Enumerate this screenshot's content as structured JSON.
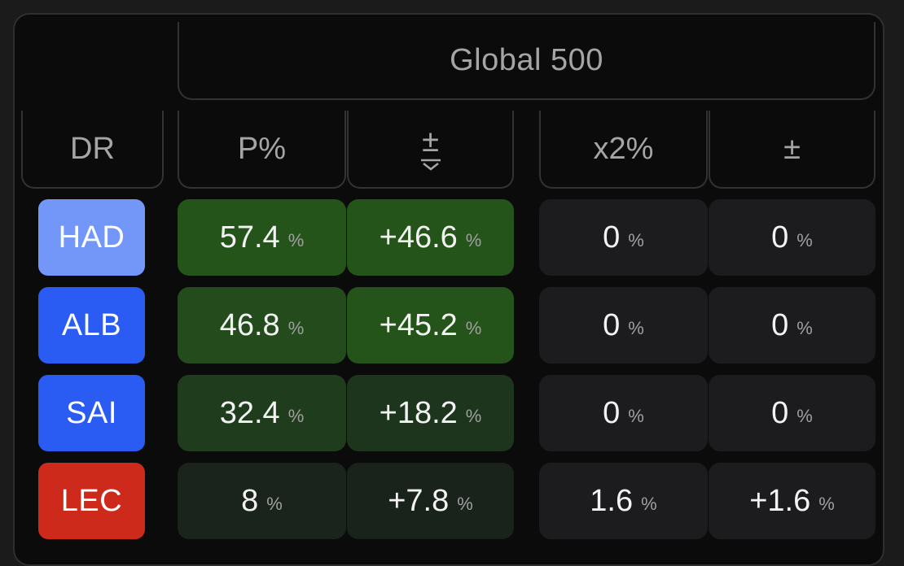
{
  "header": {
    "title": "Global 500"
  },
  "columns": {
    "dr": "DR",
    "p_pct": "P%",
    "p_delta": "±",
    "x2_pct": "x2%",
    "x2_delta": "±"
  },
  "unit": "%",
  "colors": {
    "had": "#7297f8",
    "alb": "#2a5cf4",
    "sai": "#2a5cf4",
    "lec": "#cd2a1c"
  },
  "rows": [
    {
      "driver": "HAD",
      "p": "57.4",
      "pd": "+46.6",
      "x2": "0",
      "x2d": "0"
    },
    {
      "driver": "ALB",
      "p": "46.8",
      "pd": "+45.2",
      "x2": "0",
      "x2d": "0"
    },
    {
      "driver": "SAI",
      "p": "32.4",
      "pd": "+18.2",
      "x2": "0",
      "x2d": "0"
    },
    {
      "driver": "LEC",
      "p": "8",
      "pd": "+7.8",
      "x2": "1.6",
      "x2d": "+1.6"
    }
  ]
}
